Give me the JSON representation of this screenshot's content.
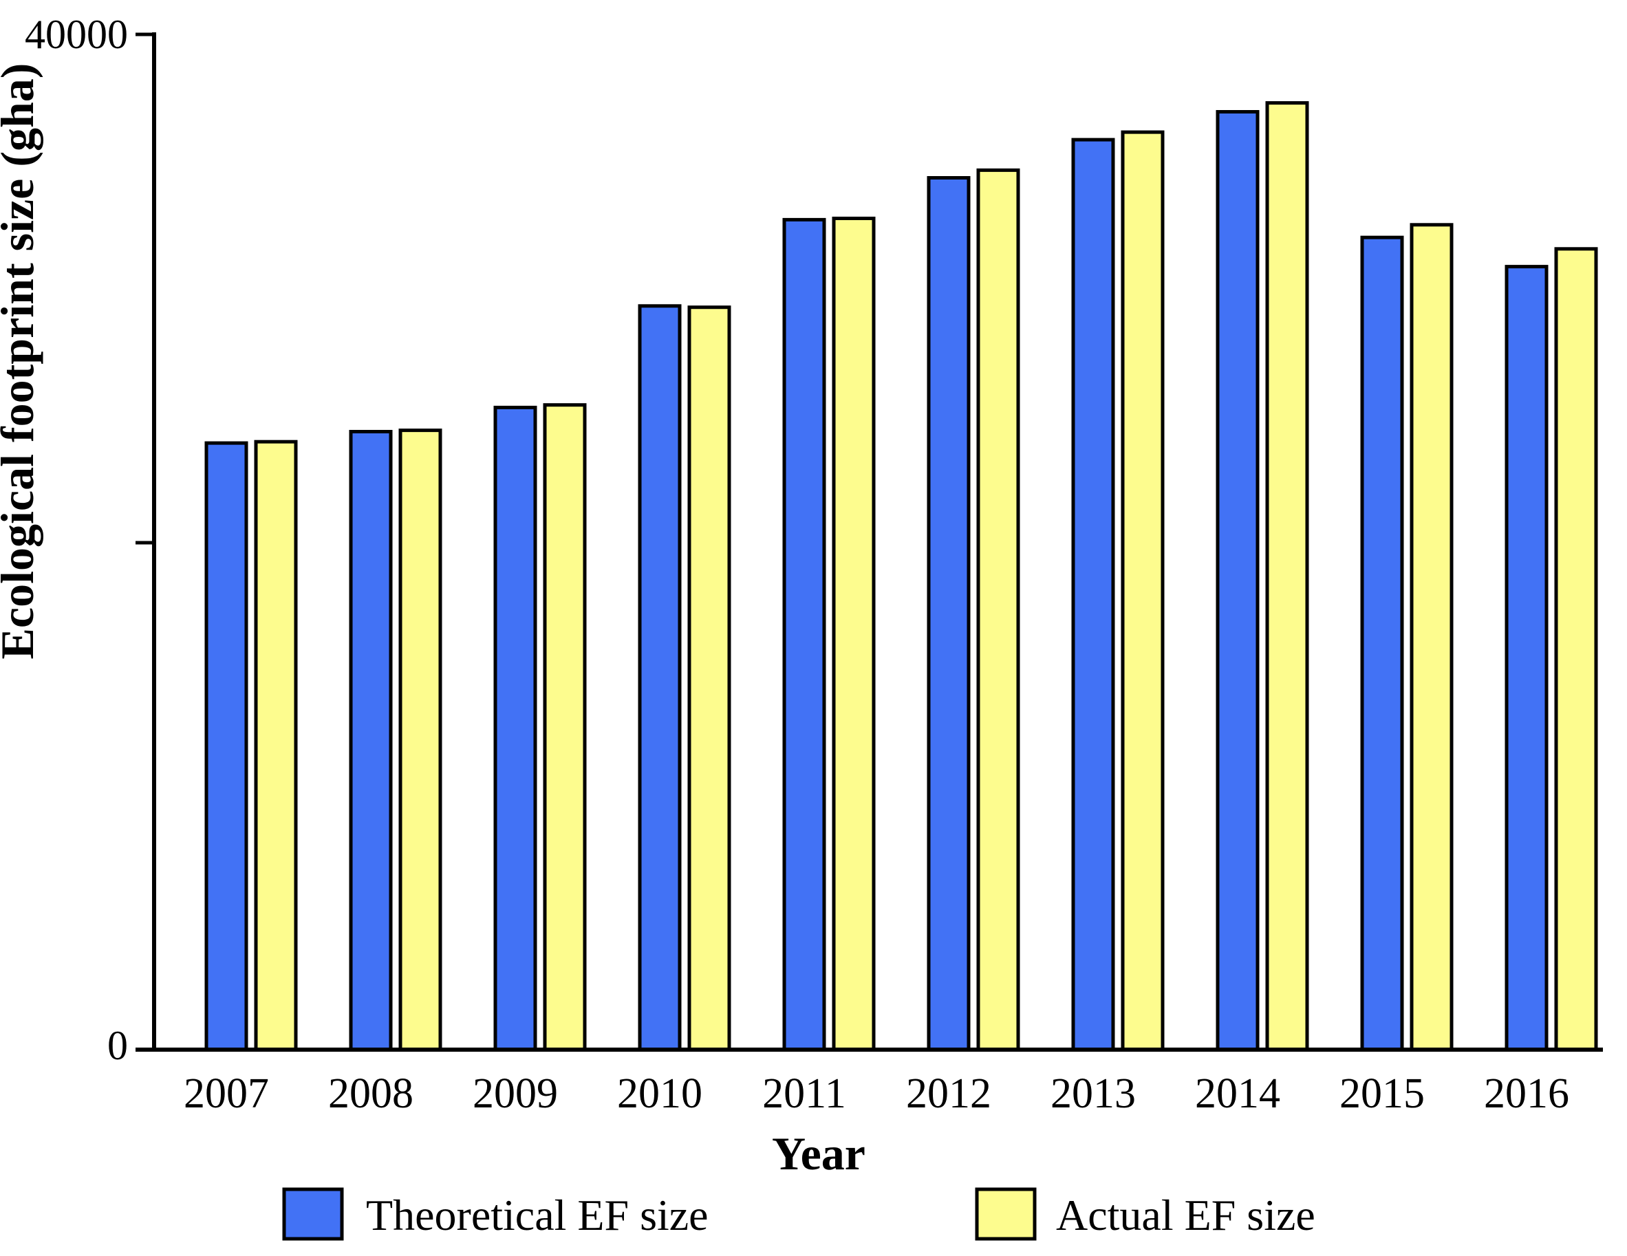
{
  "chart_data": {
    "type": "bar",
    "title": "",
    "xlabel": "Year",
    "ylabel": "Ecological footprint size (gha)",
    "ylim": [
      0,
      40000
    ],
    "grid": false,
    "legend_position": "bottom",
    "yticks": [
      {
        "value": 0,
        "label": "0"
      },
      {
        "value": 20000,
        "label": ""
      },
      {
        "value": 40000,
        "label": "40000"
      }
    ],
    "categories": [
      "2007",
      "2008",
      "2009",
      "2010",
      "2011",
      "2012",
      "2013",
      "2014",
      "2015",
      "2016"
    ],
    "series": [
      {
        "name": "Theoretical EF size",
        "color": "#4272f5",
        "values": [
          23900,
          24350,
          25300,
          29300,
          32700,
          34350,
          35850,
          36950,
          32000,
          30850
        ]
      },
      {
        "name": "Actual EF size",
        "color": "#fdfc8e",
        "values": [
          23950,
          24400,
          25400,
          29250,
          32750,
          34650,
          36150,
          37300,
          32500,
          31550
        ]
      }
    ]
  },
  "colors": {
    "bar_stroke": "#000000",
    "axis": "#000000",
    "background": "#ffffff"
  }
}
